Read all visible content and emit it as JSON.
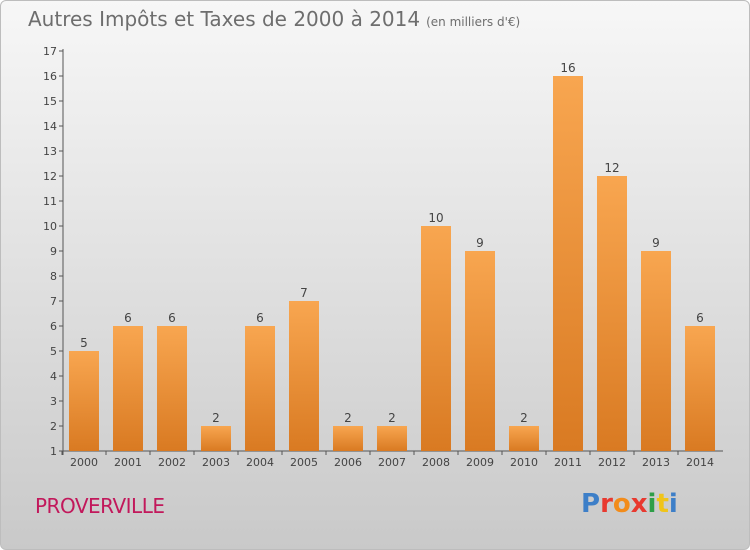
{
  "title": "Autres Impôts et Taxes de 2000 à 2014",
  "subtitle": "(en milliers d'€)",
  "commune": "PROVERVILLE",
  "logo_text": "Proxiti",
  "colors": {
    "bar_top": "#f8a650",
    "bar_bottom": "#d97a22",
    "title": "#6e6e6e",
    "commune": "#c2185b"
  },
  "chart_data": {
    "type": "bar",
    "title": "Autres Impôts et Taxes de 2000 à 2014",
    "subtitle": "(en milliers d'€)",
    "categories": [
      "2000",
      "2001",
      "2002",
      "2003",
      "2004",
      "2005",
      "2006",
      "2007",
      "2008",
      "2009",
      "2010",
      "2011",
      "2012",
      "2013",
      "2014"
    ],
    "values": [
      5,
      6,
      6,
      2,
      6,
      7,
      2,
      2,
      10,
      9,
      2,
      16,
      12,
      9,
      6
    ],
    "ylim": [
      1,
      17
    ],
    "yticks": [
      1,
      2,
      3,
      4,
      5,
      6,
      7,
      8,
      9,
      10,
      11,
      12,
      13,
      14,
      15,
      16,
      17
    ],
    "grid": false,
    "legend": "none"
  }
}
